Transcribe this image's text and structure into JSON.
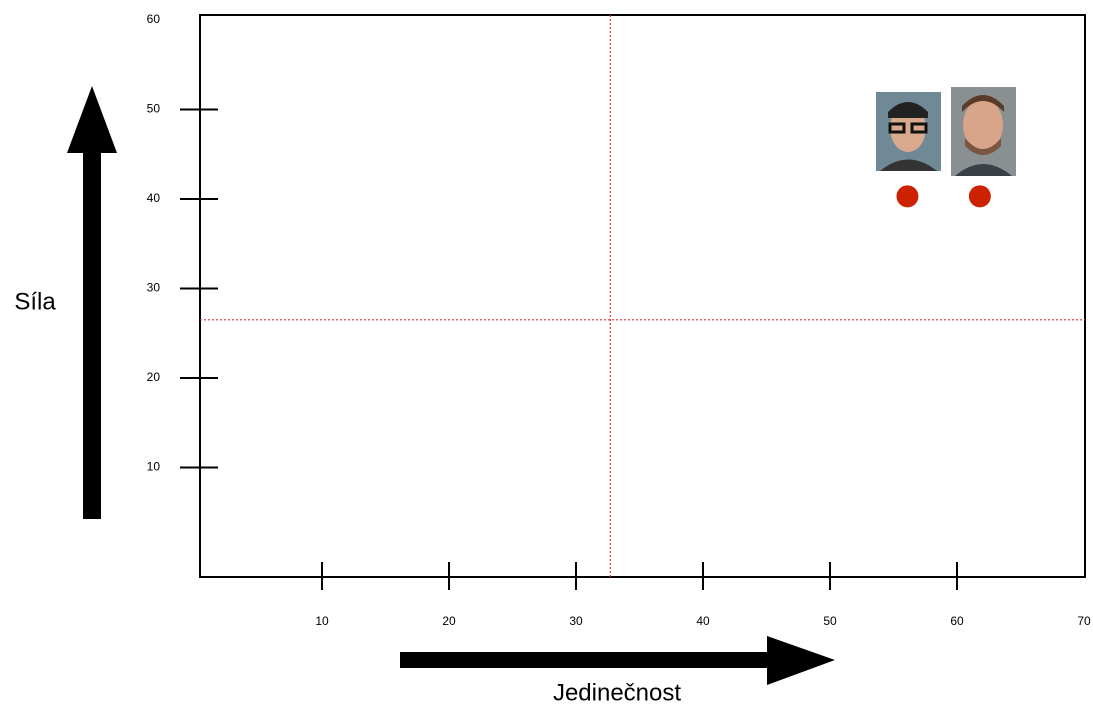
{
  "chart_data": {
    "type": "scatter",
    "x_label": "Jedinečnost",
    "y_label": "Síla",
    "series": [
      {
        "color": "#cc2200",
        "x": [
          56.1,
          61.8
        ],
        "values": [
          40.3,
          40.3
        ]
      }
    ],
    "xlim": [
      0,
      70
    ],
    "ylim": [
      0,
      60
    ],
    "xticks": [
      10,
      20,
      30,
      40,
      50,
      60,
      70
    ],
    "yticks": [
      10,
      20,
      30,
      40,
      50,
      60
    ],
    "vlines": [
      32.7
    ],
    "hlines": [
      26.5
    ],
    "refline_color": "#e03030"
  }
}
